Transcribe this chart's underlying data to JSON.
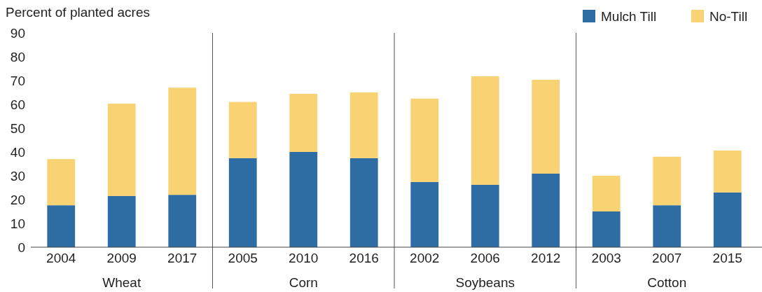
{
  "chart_data": {
    "type": "bar",
    "ylabel": "Percent of planted acres",
    "categories": [
      "2004",
      "2009",
      "2017",
      "2005",
      "2010",
      "2016",
      "2002",
      "2006",
      "2012",
      "2003",
      "2007",
      "2015"
    ],
    "stacked": true,
    "series": [
      {
        "name": "Mulch Till",
        "color": "#2e6da4",
        "values": [
          17.6,
          21.5,
          22,
          37.4,
          40,
          37.4,
          27.4,
          26.2,
          30.9,
          15,
          17.6,
          23
        ]
      },
      {
        "name": "No-Till",
        "color": "#f9d273",
        "values": [
          19.4,
          38.8,
          45,
          23.6,
          24.4,
          27.6,
          35,
          45.6,
          39.4,
          15,
          20.4,
          17.6
        ]
      }
    ],
    "ylim": [
      0,
      90
    ],
    "yticks": [
      0,
      10,
      20,
      30,
      40,
      50,
      60,
      70,
      80,
      90
    ],
    "grid": false,
    "legend": "top right",
    "annotations": [
      "Wheat",
      "Corn",
      "Soybeans",
      "Cotton"
    ]
  }
}
